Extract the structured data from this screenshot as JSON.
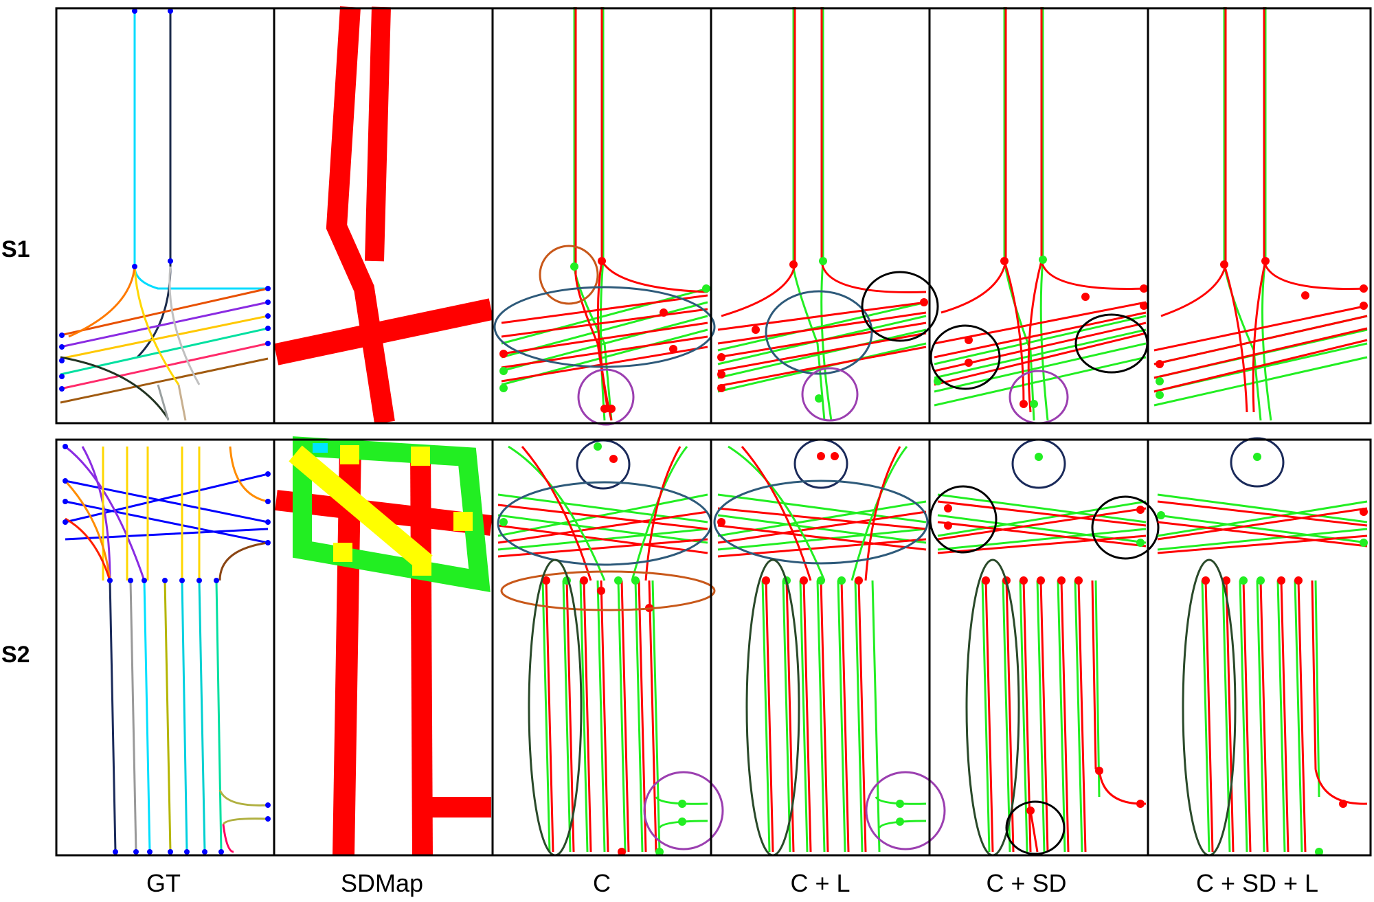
{
  "rows": [
    {
      "label": "S1"
    },
    {
      "label": "S2"
    }
  ],
  "columns": [
    {
      "label": "GT"
    },
    {
      "label": "SDMap"
    },
    {
      "label": "C"
    },
    {
      "label": "C + L"
    },
    {
      "label": "C + SD"
    },
    {
      "label": "C + SD + L"
    }
  ],
  "colors": {
    "prediction": "#ff0000",
    "ground_truth": "#22ee22",
    "sdmap_road": "#ff0000",
    "sdmap_green": "#22ee22",
    "sdmap_yellow": "#ffff00",
    "sdmap_cyan": "#00e5ff",
    "node": "#0000ff",
    "highlight_orange": "#c8581a",
    "highlight_blue": "#2e5a7a",
    "highlight_purple": "#9b3fb0",
    "highlight_black": "#000000",
    "highlight_navy": "#1a2a5a",
    "highlight_darkgreen": "#2a4a2a"
  }
}
